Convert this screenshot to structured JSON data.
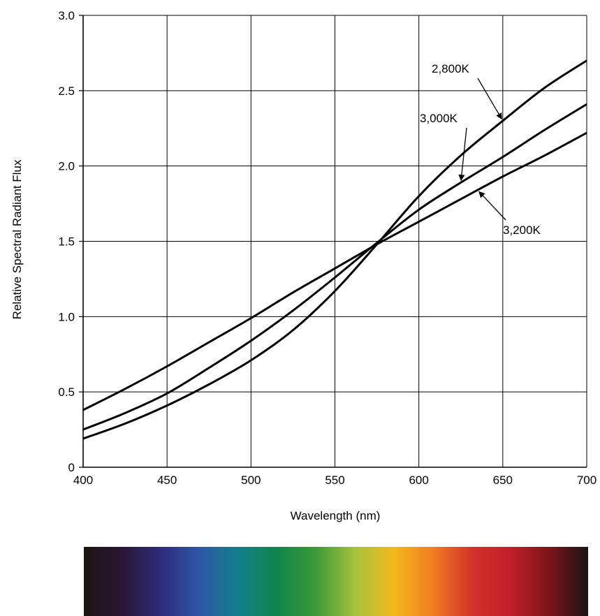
{
  "chart_data": {
    "type": "line",
    "title": "",
    "xlabel": "Wavelength (nm)",
    "ylabel": "Relative Spectral Radiant Flux",
    "xlim": [
      400,
      700
    ],
    "ylim": [
      0,
      3.0
    ],
    "grid": true,
    "x_ticks": [
      400,
      450,
      500,
      550,
      600,
      650,
      700
    ],
    "x_tick_labels": [
      "400",
      "450",
      "500",
      "550",
      "600",
      "650",
      "700"
    ],
    "y_ticks": [
      0,
      0.5,
      1.0,
      1.5,
      2.0,
      2.5,
      3.0
    ],
    "y_tick_labels": [
      "0",
      "0.5",
      "1.0",
      "1.5",
      "2.0",
      "2.5",
      "3.0"
    ],
    "x": [
      400,
      425,
      450,
      475,
      500,
      525,
      550,
      575,
      600,
      625,
      650,
      675,
      700
    ],
    "series": [
      {
        "name": "2,800K",
        "values": [
          0.19,
          0.29,
          0.41,
          0.55,
          0.71,
          0.91,
          1.17,
          1.48,
          1.8,
          2.07,
          2.3,
          2.52,
          2.7
        ]
      },
      {
        "name": "3,000K",
        "values": [
          0.25,
          0.36,
          0.49,
          0.66,
          0.84,
          1.04,
          1.26,
          1.49,
          1.71,
          1.89,
          2.06,
          2.24,
          2.41
        ]
      },
      {
        "name": "3,200K",
        "values": [
          0.38,
          0.52,
          0.67,
          0.83,
          0.99,
          1.16,
          1.32,
          1.48,
          1.63,
          1.78,
          1.93,
          2.07,
          2.22
        ]
      }
    ],
    "curve_labels": [
      {
        "series": "2,800K",
        "text": "2,800K",
        "arrow_x": 650
      },
      {
        "series": "3,000K",
        "text": "3,000K",
        "arrow_x": 625
      },
      {
        "series": "3,200K",
        "text": "3,200K",
        "arrow_x": 635
      }
    ],
    "spectrum_bar": {
      "stops": [
        "#1e1410",
        "#2a1736",
        "#2f2b7d",
        "#2e57a6",
        "#137f8c",
        "#10864a",
        "#3d9a3a",
        "#a6c33d",
        "#f3b81c",
        "#f07d21",
        "#d3322a",
        "#c1202a",
        "#7b1519",
        "#1c1414"
      ]
    },
    "colors": {
      "line": "#000000",
      "grid": "#000000",
      "background": "#ffffff"
    }
  }
}
